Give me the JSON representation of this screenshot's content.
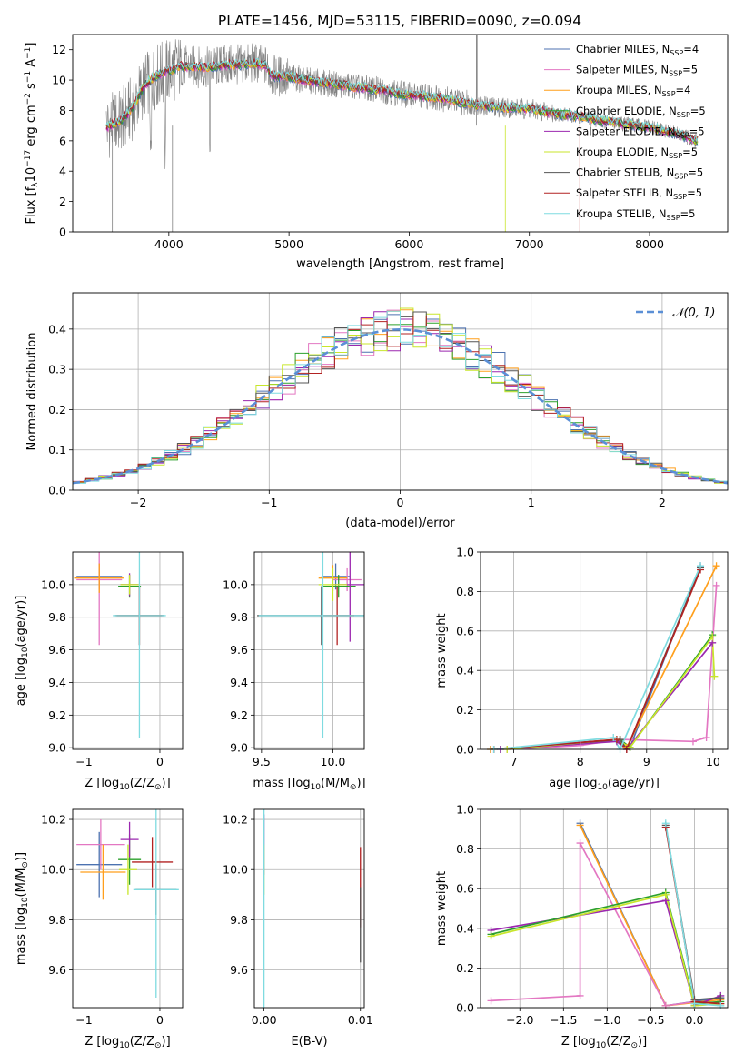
{
  "figure_title": "PLATE=1456, MJD=53115, FIBERID=0090, z=0.094",
  "colors": {
    "chabrier_miles": "#4c72b0",
    "salpeter_miles": "#e377c2",
    "kroupa_miles": "#ff9f1c",
    "chabrier_elodie": "#2ca02c",
    "salpeter_elodie": "#9b27af",
    "kroupa_elodie": "#c8e62b",
    "chabrier_stelib": "#555555",
    "salpeter_stelib": "#b22222",
    "kroupa_stelib": "#7fdbe0",
    "data_gray": "#808080",
    "normal_curve": "#5b8fd6"
  },
  "chart_data": [
    {
      "id": "spectrum",
      "type": "line",
      "xlabel": "wavelength [Angstrom, rest frame]",
      "ylabel": "Flux [fλ10⁻¹⁷ erg cm⁻² s⁻¹ A⁻¹]",
      "xlim": [
        3200,
        8650
      ],
      "ylim": [
        0,
        13
      ],
      "xticks": [
        4000,
        5000,
        6000,
        7000,
        8000
      ],
      "yticks": [
        0,
        2,
        4,
        6,
        8,
        10,
        12
      ],
      "grid": false,
      "legend_position": "top-right",
      "legend": [
        {
          "label": "Chabrier MILES, N",
          "sub": "SSP",
          "tail": "=4"
        },
        {
          "label": "Salpeter MILES, N",
          "sub": "SSP",
          "tail": "=5"
        },
        {
          "label": "Kroupa MILES, N",
          "sub": "SSP",
          "tail": "=4"
        },
        {
          "label": "Chabrier ELODIE, N",
          "sub": "SSP",
          "tail": "=5"
        },
        {
          "label": "Salpeter ELODIE, N",
          "sub": "SSP",
          "tail": "=5"
        },
        {
          "label": "Kroupa ELODIE, N",
          "sub": "SSP",
          "tail": "=5"
        },
        {
          "label": "Chabrier STELIB, N",
          "sub": "SSP",
          "tail": "=5"
        },
        {
          "label": "Salpeter STELIB, N",
          "sub": "SSP",
          "tail": "=5"
        },
        {
          "label": "Kroupa STELIB, N",
          "sub": "SSP",
          "tail": "=5"
        }
      ],
      "continuum": {
        "x": [
          3480,
          3600,
          3700,
          3800,
          3900,
          4000,
          4100,
          4200,
          4300,
          4400,
          4500,
          4600,
          4700,
          4800,
          4850,
          5000,
          5200,
          5400,
          5600,
          5800,
          6000,
          6200,
          6400,
          6600,
          6800,
          7000,
          7200,
          7400,
          7600,
          7800,
          8000,
          8200,
          8400
        ],
        "y": [
          6.9,
          7.3,
          8.2,
          9.7,
          10.3,
          10.6,
          10.9,
          10.9,
          10.8,
          10.9,
          11.0,
          11.0,
          11.1,
          11.0,
          10.3,
          10.2,
          9.9,
          9.7,
          9.5,
          9.3,
          9.0,
          8.9,
          8.6,
          8.3,
          8.2,
          8.1,
          7.8,
          7.6,
          7.3,
          7.1,
          6.9,
          6.5,
          6.0
        ]
      }
    },
    {
      "id": "residuals",
      "type": "histogram",
      "xlabel": "(data-model)/error",
      "ylabel": "Normed distribution",
      "xlim": [
        -2.5,
        2.5
      ],
      "ylim": [
        0,
        0.49
      ],
      "xticks": [
        -2,
        -1,
        0,
        1,
        2
      ],
      "yticks": [
        0.0,
        0.1,
        0.2,
        0.3,
        0.4
      ],
      "grid": true,
      "legend": [
        "𝒩(0, 1)"
      ],
      "bin_width": 0.1,
      "approx_peak": 0.44
    },
    {
      "id": "age_vs_Z",
      "type": "scatter",
      "xlabel": "Z [log10(Z/Z⊙)]",
      "ylabel": "age  [log10(age/yr)]",
      "xlim": [
        -1.15,
        0.3
      ],
      "ylim": [
        8.99,
        10.2
      ],
      "xticks": [
        -1,
        0
      ],
      "yticks": [
        9.0,
        9.2,
        9.4,
        9.6,
        9.8,
        10.0
      ],
      "grid": true,
      "points": [
        {
          "x": -0.8,
          "y": 10.05,
          "xe": 0.3,
          "ye": 0.08,
          "c": "chabrier_miles"
        },
        {
          "x": -0.8,
          "y": 10.03,
          "xe": 0.3,
          "ye": 0.4,
          "c": "salpeter_miles"
        },
        {
          "x": -0.8,
          "y": 10.04,
          "xe": 0.32,
          "ye": 0.09,
          "c": "kroupa_miles"
        },
        {
          "x": -0.4,
          "y": 9.99,
          "xe": 0.15,
          "ye": 0.07,
          "c": "chabrier_elodie"
        },
        {
          "x": -0.4,
          "y": 10.0,
          "xe": 0.12,
          "ye": 0.07,
          "c": "salpeter_elodie"
        },
        {
          "x": -0.4,
          "y": 10.0,
          "xe": 0.12,
          "ye": 0.06,
          "c": "kroupa_elodie"
        },
        {
          "x": -0.27,
          "y": 9.81,
          "xe": 0.32,
          "ye": 0.18,
          "c": "chabrier_stelib"
        },
        {
          "x": -0.27,
          "y": 9.81,
          "xe": 0.3,
          "ye": 0.18,
          "c": "salpeter_stelib"
        },
        {
          "x": -0.27,
          "y": 9.81,
          "xe": 0.35,
          "ye": 0.75,
          "c": "kroupa_stelib"
        }
      ]
    },
    {
      "id": "age_vs_mass",
      "type": "scatter",
      "xlabel": "mass [log10(M/M⊙)]",
      "ylabel": "",
      "xlim": [
        9.45,
        10.22
      ],
      "ylim": [
        8.99,
        10.2
      ],
      "xticks": [
        9.5,
        10.0
      ],
      "yticks": [
        9.0,
        9.2,
        9.4,
        9.6,
        9.8,
        10.0
      ],
      "grid": true,
      "points": [
        {
          "x": 10.02,
          "y": 10.05,
          "xe": 0.1,
          "ye": 0.08,
          "c": "chabrier_miles"
        },
        {
          "x": 10.1,
          "y": 10.03,
          "xe": 0.1,
          "ye": 0.07,
          "c": "salpeter_miles"
        },
        {
          "x": 10.0,
          "y": 10.04,
          "xe": 0.1,
          "ye": 0.08,
          "c": "kroupa_miles"
        },
        {
          "x": 10.04,
          "y": 9.99,
          "xe": 0.12,
          "ye": 0.07,
          "c": "chabrier_elodie"
        },
        {
          "x": 10.12,
          "y": 10.0,
          "xe": 0.12,
          "ye": 0.35,
          "c": "salpeter_elodie"
        },
        {
          "x": 10.0,
          "y": 10.0,
          "xe": 0.1,
          "ye": 0.1,
          "c": "kroupa_elodie"
        },
        {
          "x": 9.92,
          "y": 9.81,
          "xe": 0.45,
          "ye": 0.18,
          "c": "chabrier_stelib"
        },
        {
          "x": 10.03,
          "y": 9.81,
          "xe": 0.12,
          "ye": 0.18,
          "c": "salpeter_stelib"
        },
        {
          "x": 9.93,
          "y": 9.81,
          "xe": 0.45,
          "ye": 0.75,
          "c": "kroupa_stelib"
        }
      ]
    },
    {
      "id": "weight_vs_age",
      "type": "line",
      "xlabel": "age  [log10(age/yr)]",
      "ylabel": "mass weight",
      "xlim": [
        6.5,
        10.22
      ],
      "ylim": [
        0,
        1.0
      ],
      "xticks": [
        7,
        8,
        9,
        10
      ],
      "yticks": [
        0.0,
        0.2,
        0.4,
        0.6,
        0.8,
        1.0
      ],
      "grid": true,
      "series": [
        {
          "c": "chabrier_miles",
          "x": [
            6.65,
            8.6,
            8.75,
            9.81
          ],
          "y": [
            0.0,
            0.05,
            0.01,
            0.93
          ]
        },
        {
          "c": "salpeter_miles",
          "x": [
            6.9,
            8.0,
            8.6,
            9.7,
            9.9,
            10.05
          ],
          "y": [
            0.0,
            0.02,
            0.05,
            0.04,
            0.06,
            0.83
          ]
        },
        {
          "c": "kroupa_miles",
          "x": [
            6.65,
            8.6,
            8.7,
            10.05
          ],
          "y": [
            0.0,
            0.05,
            0.01,
            0.93
          ]
        },
        {
          "c": "chabrier_elodie",
          "x": [
            6.8,
            8.6,
            8.75,
            9.99
          ],
          "y": [
            0.0,
            0.05,
            0.01,
            0.58
          ]
        },
        {
          "c": "salpeter_elodie",
          "x": [
            6.8,
            8.55,
            8.7,
            9.99
          ],
          "y": [
            0.0,
            0.04,
            0.0,
            0.54
          ]
        },
        {
          "c": "kroupa_elodie",
          "x": [
            6.9,
            8.55,
            8.75,
            9.99,
            10.02
          ],
          "y": [
            0.0,
            0.05,
            0.01,
            0.57,
            0.37
          ]
        },
        {
          "c": "chabrier_stelib",
          "x": [
            6.7,
            8.6,
            8.7,
            9.81
          ],
          "y": [
            0.0,
            0.05,
            0.0,
            0.92
          ]
        },
        {
          "c": "salpeter_stelib",
          "x": [
            6.7,
            8.55,
            8.7,
            9.81
          ],
          "y": [
            0.0,
            0.05,
            0.0,
            0.91
          ]
        },
        {
          "c": "kroupa_stelib",
          "x": [
            6.7,
            8.5,
            8.6,
            9.81
          ],
          "y": [
            0.0,
            0.06,
            0.0,
            0.93
          ]
        }
      ]
    },
    {
      "id": "mass_vs_Z",
      "type": "scatter",
      "xlabel": "Z [log10(Z/Z⊙)]",
      "ylabel": "mass [log10(M/M⊙)]",
      "xlim": [
        -1.15,
        0.3
      ],
      "ylim": [
        9.45,
        10.24
      ],
      "xticks": [
        -1,
        0
      ],
      "yticks": [
        9.6,
        9.8,
        10.0,
        10.2
      ],
      "grid": true,
      "points": [
        {
          "x": -0.8,
          "y": 10.02,
          "xe": 0.3,
          "ye": 0.13,
          "c": "chabrier_miles"
        },
        {
          "x": -0.78,
          "y": 10.1,
          "xe": 0.32,
          "ye": 0.1,
          "c": "salpeter_miles"
        },
        {
          "x": -0.75,
          "y": 9.99,
          "xe": 0.3,
          "ye": 0.11,
          "c": "kroupa_miles"
        },
        {
          "x": -0.4,
          "y": 10.04,
          "xe": 0.15,
          "ye": 0.1,
          "c": "chabrier_elodie"
        },
        {
          "x": -0.4,
          "y": 10.12,
          "xe": 0.12,
          "ye": 0.07,
          "c": "salpeter_elodie"
        },
        {
          "x": -0.42,
          "y": 10.0,
          "xe": 0.12,
          "ye": 0.1,
          "c": "kroupa_elodie"
        },
        {
          "x": -0.05,
          "y": 9.92,
          "xe": 0.27,
          "ye": 0.1,
          "c": "chabrier_stelib"
        },
        {
          "x": -0.1,
          "y": 10.03,
          "xe": 0.27,
          "ye": 0.1,
          "c": "salpeter_stelib"
        },
        {
          "x": -0.05,
          "y": 9.92,
          "xe": 0.3,
          "ye": 0.43,
          "c": "kroupa_stelib"
        }
      ]
    },
    {
      "id": "mass_vs_ebv",
      "type": "scatter",
      "xlabel": "E(B-V)",
      "ylabel": "",
      "xlim": [
        -0.001,
        0.0104
      ],
      "ylim": [
        9.45,
        10.24
      ],
      "xticks": [
        0.0,
        0.01
      ],
      "xticklabels": [
        "0.00",
        "0.01"
      ],
      "yticks": [
        9.6,
        9.8,
        10.0,
        10.2
      ],
      "grid": true,
      "points": [
        {
          "x": 0.0,
          "y": 10.1,
          "xe": 0,
          "ye": 0.12,
          "c": "salpeter_elodie"
        },
        {
          "x": 0.0,
          "y": 10.0,
          "xe": 0,
          "ye": 0.1,
          "c": "kroupa_elodie"
        },
        {
          "x": 0.0,
          "y": 9.95,
          "xe": 0,
          "ye": 0.5,
          "c": "kroupa_stelib"
        },
        {
          "x": 0.01,
          "y": 9.93,
          "xe": 0,
          "ye": 0.16,
          "c": "salpeter_stelib"
        },
        {
          "x": 0.01,
          "y": 9.78,
          "xe": 0,
          "ye": 0.15,
          "c": "chabrier_stelib"
        }
      ]
    },
    {
      "id": "weight_vs_Z",
      "type": "line",
      "xlabel": "Z [log10(Z/Z⊙)]",
      "ylabel": "mass weight",
      "xlim": [
        -2.45,
        0.38
      ],
      "ylim": [
        0,
        1.0
      ],
      "xticks": [
        -2.0,
        -1.5,
        -1.0,
        -0.5,
        0.0
      ],
      "yticks": [
        0.0,
        0.2,
        0.4,
        0.6,
        0.8,
        1.0
      ],
      "grid": true,
      "series": [
        {
          "c": "chabrier_miles",
          "x": [
            -1.31,
            -0.33,
            0.3
          ],
          "y": [
            0.93,
            0.01,
            0.05
          ]
        },
        {
          "c": "kroupa_miles",
          "x": [
            -1.31,
            -0.33,
            0.3
          ],
          "y": [
            0.92,
            0.01,
            0.04
          ]
        },
        {
          "c": "salpeter_miles",
          "x": [
            -2.33,
            -1.31,
            -1.31,
            -0.33,
            0.0
          ],
          "y": [
            0.035,
            0.06,
            0.83,
            0.01,
            0.03
          ]
        },
        {
          "c": "salpeter_elodie",
          "x": [
            -2.33,
            -0.33,
            0.0,
            0.3
          ],
          "y": [
            0.39,
            0.54,
            0.01,
            0.06
          ]
        },
        {
          "c": "chabrier_elodie",
          "x": [
            -2.33,
            -0.33,
            0.0,
            0.3
          ],
          "y": [
            0.37,
            0.58,
            0.02,
            0.03
          ]
        },
        {
          "c": "kroupa_elodie",
          "x": [
            -2.33,
            -0.33,
            0.0,
            0.3
          ],
          "y": [
            0.36,
            0.57,
            0.01,
            0.02
          ]
        },
        {
          "c": "chabrier_stelib",
          "x": [
            -0.33,
            0.0,
            0.3
          ],
          "y": [
            0.92,
            0.04,
            0.05
          ]
        },
        {
          "c": "salpeter_stelib",
          "x": [
            -0.33,
            0.0,
            0.3
          ],
          "y": [
            0.91,
            0.03,
            0.02
          ]
        },
        {
          "c": "kroupa_stelib",
          "x": [
            -0.33,
            0.0,
            0.3
          ],
          "y": [
            0.93,
            0.02,
            0.01
          ]
        }
      ]
    }
  ]
}
